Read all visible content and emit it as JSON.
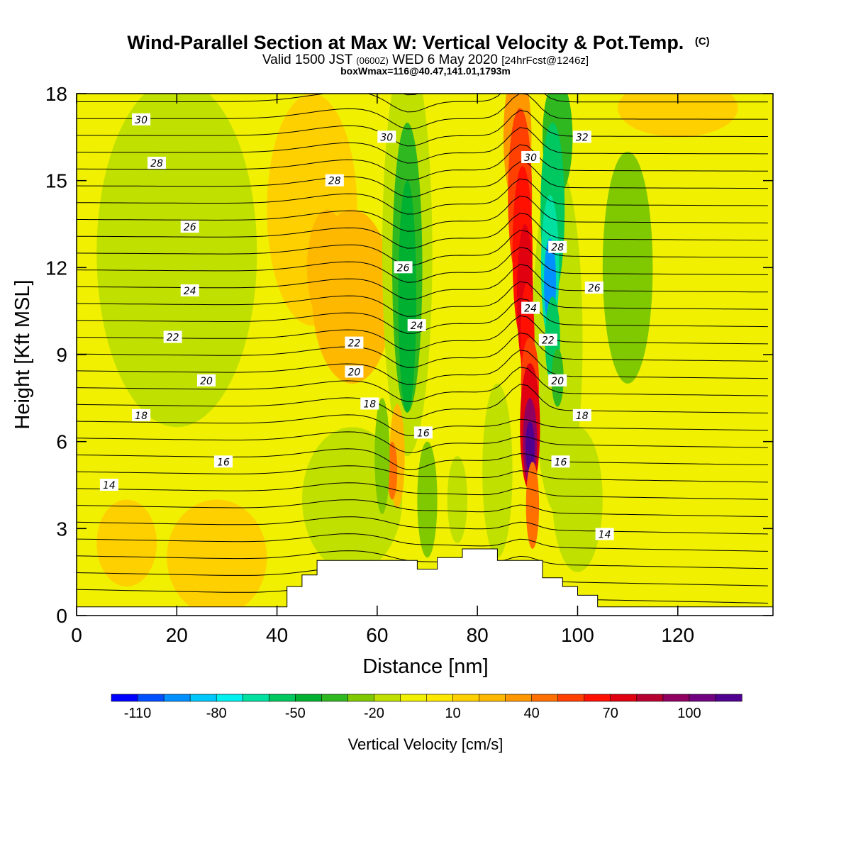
{
  "header": {
    "title_main": "Wind-Parallel Section at Max W: Vertical Velocity & Pot.Temp.",
    "title_mark": "(C)",
    "sub_valid": "Valid 1500 JST",
    "sub_utc": "(0600Z)",
    "sub_date": "WED 6 May 2020",
    "sub_fcst": "[24hrFcst@1246z]",
    "sub_box": "boxWmax=116@40.47,141.01,1793m"
  },
  "chart_data": {
    "type": "heatmap",
    "title": "Wind-Parallel Section at Max W: Vertical Velocity & Pot.Temp.",
    "xlabel": "Distance [nm]",
    "ylabel": "Height [Kft MSL]",
    "xlim": [
      0,
      139
    ],
    "ylim": [
      0,
      18
    ],
    "x_ticks": [
      0,
      20,
      40,
      60,
      80,
      100,
      120
    ],
    "y_ticks": [
      0,
      3,
      6,
      9,
      12,
      15,
      18
    ],
    "x_tick_labels": [
      "0",
      "20",
      "40",
      "60",
      "80",
      "100",
      "120"
    ],
    "y_tick_labels": [
      "0",
      "3",
      "6",
      "9",
      "12",
      "15",
      "18"
    ],
    "colorbar": {
      "label": "Vertical Velocity [cm/s]",
      "levels": [
        -120,
        -110,
        -100,
        -90,
        -80,
        -70,
        -60,
        -50,
        -40,
        -30,
        -20,
        -10,
        0,
        10,
        20,
        30,
        40,
        50,
        60,
        70,
        80,
        90,
        100,
        110,
        120
      ],
      "tick_values": [
        -110,
        -80,
        -50,
        -20,
        10,
        40,
        70,
        100
      ],
      "tick_labels": [
        "-110",
        "-80",
        "-50",
        "-20",
        "10",
        "40",
        "70",
        "100"
      ],
      "colors": [
        "#0000ff",
        "#0050ff",
        "#0090ff",
        "#00c8ff",
        "#00f0f0",
        "#00e0a0",
        "#00c860",
        "#00b030",
        "#30b820",
        "#80c800",
        "#c0e000",
        "#f0f000",
        "#ffe800",
        "#ffd000",
        "#ffb800",
        "#ff9800",
        "#ff7000",
        "#ff4000",
        "#ff1000",
        "#e00010",
        "#b80030",
        "#900060",
        "#700080",
        "#500090"
      ]
    },
    "theta_contour_labels": [
      {
        "text": "30",
        "x": 12.9,
        "y": 17.1
      },
      {
        "text": "28",
        "x": 16,
        "y": 15.6
      },
      {
        "text": "26",
        "x": 22.6,
        "y": 13.4
      },
      {
        "text": "24",
        "x": 22.6,
        "y": 11.2
      },
      {
        "text": "22",
        "x": 19.2,
        "y": 9.6
      },
      {
        "text": "20",
        "x": 25.9,
        "y": 8.1
      },
      {
        "text": "18",
        "x": 12.9,
        "y": 6.9
      },
      {
        "text": "16",
        "x": 29.3,
        "y": 5.3
      },
      {
        "text": "14",
        "x": 6.5,
        "y": 4.5
      },
      {
        "text": "30",
        "x": 61.9,
        "y": 16.5
      },
      {
        "text": "28",
        "x": 51.5,
        "y": 15.0
      },
      {
        "text": "26",
        "x": 65.2,
        "y": 12.0
      },
      {
        "text": "24",
        "x": 67.9,
        "y": 10.0
      },
      {
        "text": "22",
        "x": 55.4,
        "y": 9.4
      },
      {
        "text": "20",
        "x": 55.4,
        "y": 8.4
      },
      {
        "text": "18",
        "x": 58.5,
        "y": 7.3
      },
      {
        "text": "16",
        "x": 69.2,
        "y": 6.3
      },
      {
        "text": "32",
        "x": 100.9,
        "y": 16.5
      },
      {
        "text": "30",
        "x": 90.6,
        "y": 15.8
      },
      {
        "text": "28",
        "x": 96.0,
        "y": 12.7
      },
      {
        "text": "26",
        "x": 103.3,
        "y": 11.3
      },
      {
        "text": "24",
        "x": 90.6,
        "y": 10.6
      },
      {
        "text": "22",
        "x": 94.1,
        "y": 9.5
      },
      {
        "text": "20",
        "x": 96.0,
        "y": 8.1
      },
      {
        "text": "18",
        "x": 100.9,
        "y": 6.9
      },
      {
        "text": "16",
        "x": 96.6,
        "y": 5.3
      },
      {
        "text": "14",
        "x": 105.4,
        "y": 2.8
      }
    ],
    "terrain_kft": [
      [
        0,
        0.3
      ],
      [
        42,
        0.3
      ],
      [
        42,
        1.0
      ],
      [
        45,
        1.0
      ],
      [
        45,
        1.4
      ],
      [
        48,
        1.4
      ],
      [
        48,
        1.9
      ],
      [
        68,
        1.9
      ],
      [
        68,
        1.6
      ],
      [
        72,
        1.6
      ],
      [
        72,
        2.0
      ],
      [
        77,
        2.0
      ],
      [
        77,
        2.3
      ],
      [
        84,
        2.3
      ],
      [
        84,
        1.9
      ],
      [
        93,
        1.9
      ],
      [
        93,
        1.3
      ],
      [
        97,
        1.3
      ],
      [
        97,
        1.0
      ],
      [
        100,
        1.0
      ],
      [
        100,
        0.7
      ],
      [
        104,
        0.7
      ],
      [
        104,
        0.3
      ],
      [
        139,
        0.3
      ]
    ]
  }
}
